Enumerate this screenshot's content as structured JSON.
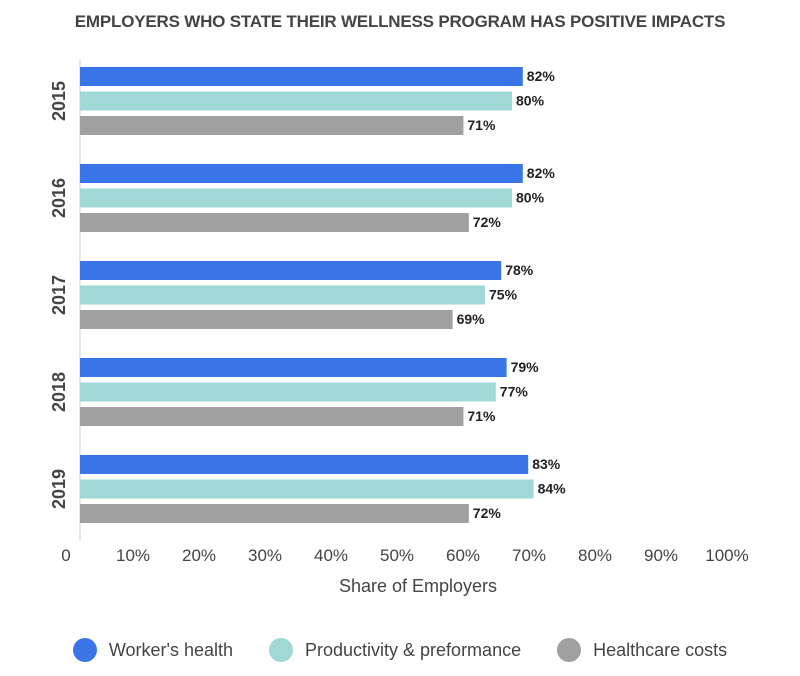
{
  "chart_data": {
    "type": "bar",
    "orientation": "horizontal",
    "title": "EMPLOYERS WHO STATE THEIR WELLNESS PROGRAM HAS POSITIVE IMPACTS",
    "xlabel": "Share of Employers",
    "ylabel": "",
    "xlim": [
      0,
      100
    ],
    "x_ticks": [
      "0",
      "10%",
      "20%",
      "30%",
      "40%",
      "50%",
      "60%",
      "70%",
      "80%",
      "90%",
      "100%"
    ],
    "categories": [
      "2015",
      "2016",
      "2017",
      "2018",
      "2019"
    ],
    "series": [
      {
        "name": "Worker's health",
        "color": "#3a75e8",
        "values": [
          82,
          82,
          78,
          79,
          83
        ],
        "labels": [
          "82%",
          "82%",
          "78%",
          "79%",
          "83%"
        ]
      },
      {
        "name": "Productivity & preformance",
        "color": "#9fd8d4",
        "values": [
          80,
          80,
          75,
          77,
          84
        ],
        "labels": [
          "80%",
          "80%",
          "75%",
          "77%",
          "84%"
        ]
      },
      {
        "name": "Healthcare costs",
        "color": "#a0a0a0",
        "values": [
          71,
          72,
          69,
          71,
          72
        ],
        "labels": [
          "71%",
          "72%",
          "69%",
          "71%",
          "72%"
        ]
      }
    ],
    "legend_position": "bottom"
  }
}
